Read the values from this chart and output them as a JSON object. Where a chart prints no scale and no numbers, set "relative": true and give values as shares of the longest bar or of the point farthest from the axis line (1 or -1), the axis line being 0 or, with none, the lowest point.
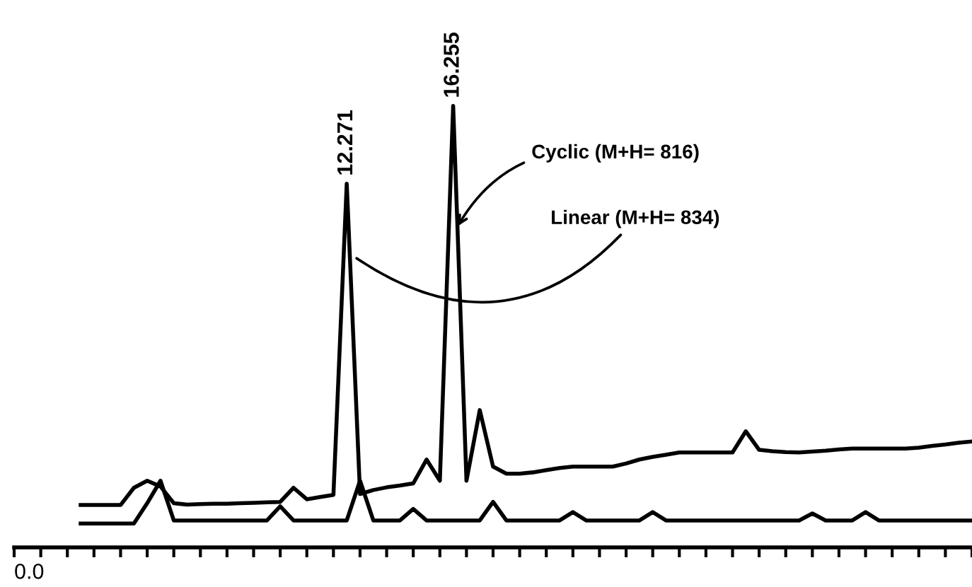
{
  "chart_data": {
    "type": "line",
    "relative": true,
    "grid": false,
    "marker": "none",
    "line_style": "solid",
    "categories": [
      null,
      null,
      null,
      null,
      null,
      null,
      null,
      null,
      null,
      null,
      null,
      null,
      null,
      null,
      null,
      null,
      null,
      null,
      null,
      null,
      null,
      null,
      null,
      null,
      null,
      null,
      null,
      null,
      null,
      null,
      null,
      null,
      null,
      null,
      null,
      null,
      null,
      null,
      null,
      null,
      null,
      null,
      null,
      null,
      null,
      null,
      null,
      null,
      null,
      null,
      null,
      null,
      null,
      null,
      null,
      null,
      null,
      null,
      null,
      null,
      null,
      null,
      null,
      null,
      null,
      null,
      null,
      null,
      null,
      null,
      null,
      null,
      null
    ],
    "series": [
      {
        "color": "#000000",
        "values": [
          null,
          null,
          null,
          null,
          null,
          0.096,
          0.096,
          0.096,
          0.096,
          0.135,
          0.151,
          0.138,
          0.1,
          0.097,
          0.098,
          0.099,
          0.099,
          0.1,
          0.101,
          0.102,
          0.103,
          0.135,
          0.109,
          0.114,
          0.119,
          0.824,
          0.121,
          0.13,
          0.136,
          0.14,
          0.145,
          0.199,
          0.151,
          1.0,
          0.151,
          0.311,
          0.183,
          0.167,
          0.167,
          0.17,
          0.175,
          0.18,
          0.183,
          0.183,
          0.183,
          0.183,
          0.19,
          0.199,
          0.205,
          0.21,
          0.215,
          0.215,
          0.215,
          0.215,
          0.215,
          0.263,
          0.221,
          0.218,
          0.216,
          0.215,
          0.217,
          0.219,
          0.222,
          0.224,
          0.224,
          0.224,
          0.224,
          0.224,
          0.226,
          0.23,
          0.233,
          0.237,
          0.24
        ]
      },
      {
        "color": "#000000",
        "values": [
          null,
          null,
          null,
          null,
          null,
          0.054,
          0.054,
          0.054,
          0.054,
          0.054,
          0.1,
          0.151,
          0.061,
          0.061,
          0.061,
          0.061,
          0.061,
          0.061,
          0.061,
          0.061,
          0.093,
          0.061,
          0.061,
          0.061,
          0.061,
          0.061,
          0.151,
          0.061,
          0.061,
          0.061,
          0.087,
          0.061,
          0.061,
          0.061,
          0.061,
          0.061,
          0.103,
          0.061,
          0.061,
          0.061,
          0.061,
          0.061,
          0.08,
          0.061,
          0.061,
          0.061,
          0.061,
          0.061,
          0.08,
          0.061,
          0.061,
          0.061,
          0.061,
          0.061,
          0.061,
          0.061,
          0.061,
          0.061,
          0.061,
          0.061,
          0.077,
          0.061,
          0.061,
          0.061,
          0.08,
          0.061,
          0.061,
          0.061,
          0.061,
          0.061,
          0.061,
          0.061,
          0.061
        ]
      }
    ],
    "annotations": [
      "0.0",
      "12.271",
      "16.255",
      "Cyclic (M+H= 816)",
      "Linear (M+H= 834)"
    ]
  }
}
